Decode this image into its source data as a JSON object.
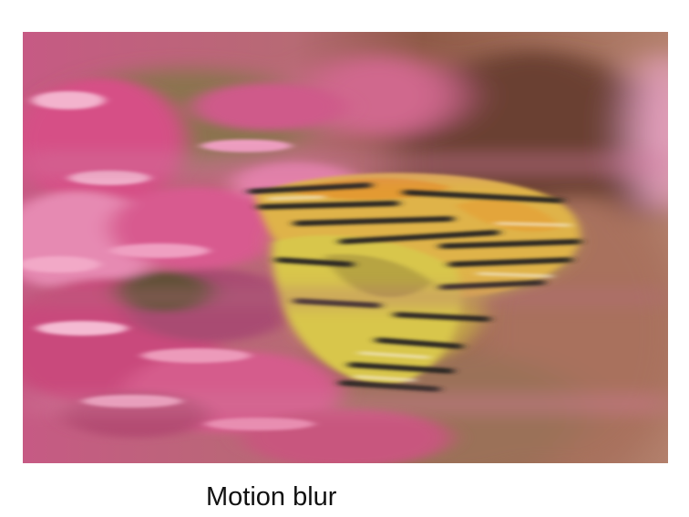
{
  "figure": {
    "caption": "Motion blur",
    "image": {
      "subject": "butterfly-on-pink-flowers",
      "effect": "motion-blur",
      "colors": {
        "flower_pink": "#d95a8f",
        "flower_light": "#f0a7c4",
        "background_brown": "#9c6550",
        "wing_yellow": "#d8c04a",
        "wing_orange": "#dca13a",
        "wing_black": "#2a2622"
      }
    }
  }
}
